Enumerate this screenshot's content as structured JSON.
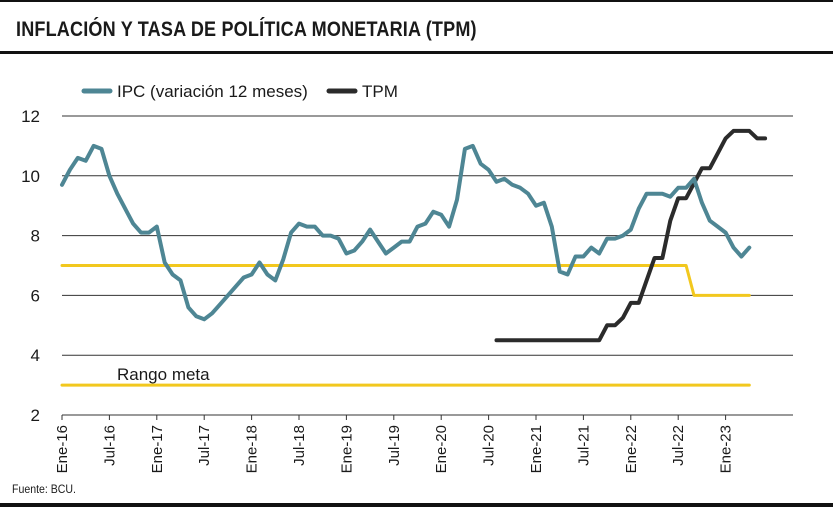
{
  "title": "INFLACIÓN Y TASA DE POLÍTICA MONETARIA (TPM)",
  "source": "Fuente: BCU.",
  "colors": {
    "ipc": "#4e8694",
    "tpm": "#2b2b2b",
    "target": "#f2c81e",
    "grid": "#333333"
  },
  "chart_data": {
    "type": "line",
    "title": "INFLACIÓN Y TASA DE POLÍTICA MONETARIA (TPM)",
    "xlabel": "",
    "ylabel": "",
    "ylim": [
      2,
      12
    ],
    "yticks": [
      2,
      4,
      6,
      8,
      10,
      12
    ],
    "x_start": "Ene-16",
    "x_tick_labels": [
      "Ene-16",
      "Jul-16",
      "Ene-17",
      "Jul-17",
      "Ene-18",
      "Jul-18",
      "Ene-19",
      "Jul-19",
      "Ene-20",
      "Jul-20",
      "Ene-21",
      "Jul-21",
      "Ene-22",
      "Jul-22",
      "Ene-23"
    ],
    "x_tick_index": [
      0,
      6,
      12,
      18,
      24,
      30,
      36,
      42,
      48,
      54,
      60,
      66,
      72,
      78,
      84
    ],
    "annotation": "Rango meta",
    "series": [
      {
        "name": "IPC (variación 12 meses)",
        "key": "ipc",
        "start_index": 0,
        "values": [
          9.7,
          10.2,
          10.6,
          10.5,
          11.0,
          10.9,
          10.0,
          9.4,
          8.9,
          8.4,
          8.1,
          8.1,
          8.3,
          7.1,
          6.7,
          6.5,
          5.6,
          5.3,
          5.2,
          5.4,
          5.7,
          6.0,
          6.3,
          6.6,
          6.7,
          7.1,
          6.7,
          6.5,
          7.2,
          8.1,
          8.4,
          8.3,
          8.3,
          8.0,
          8.0,
          7.9,
          7.4,
          7.5,
          7.8,
          8.2,
          7.8,
          7.4,
          7.6,
          7.8,
          7.8,
          8.3,
          8.4,
          8.8,
          8.7,
          8.3,
          9.2,
          10.9,
          11.0,
          10.4,
          10.2,
          9.8,
          9.9,
          9.7,
          9.6,
          9.4,
          9.0,
          9.1,
          8.3,
          6.8,
          6.7,
          7.3,
          7.3,
          7.6,
          7.4,
          7.9,
          7.9,
          8.0,
          8.2,
          8.9,
          9.4,
          9.4,
          9.4,
          9.3,
          9.6,
          9.6,
          9.9,
          9.1,
          8.5,
          8.3,
          8.1,
          7.6,
          7.3,
          7.6
        ]
      },
      {
        "name": "TPM",
        "key": "tpm",
        "start_index": 55,
        "values": [
          4.5,
          4.5,
          4.5,
          4.5,
          4.5,
          4.5,
          4.5,
          4.5,
          4.5,
          4.5,
          4.5,
          4.5,
          4.5,
          4.5,
          5.0,
          5.0,
          5.25,
          5.75,
          5.75,
          6.5,
          7.25,
          7.25,
          8.5,
          9.25,
          9.25,
          9.75,
          10.25,
          10.25,
          10.75,
          11.25,
          11.5,
          11.5,
          11.5,
          11.25,
          11.25
        ]
      },
      {
        "name": "Rango meta (superior)",
        "key": "target_upper",
        "start_index": 0,
        "points": [
          [
            0,
            7
          ],
          [
            79,
            7
          ],
          [
            80,
            6
          ],
          [
            87,
            6
          ]
        ]
      },
      {
        "name": "Rango meta (inferior)",
        "key": "target_lower",
        "start_index": 0,
        "points": [
          [
            0,
            3
          ],
          [
            87,
            3
          ]
        ]
      }
    ],
    "legend": [
      "IPC (variación 12 meses)",
      "TPM"
    ],
    "legend_position": "top-left"
  }
}
